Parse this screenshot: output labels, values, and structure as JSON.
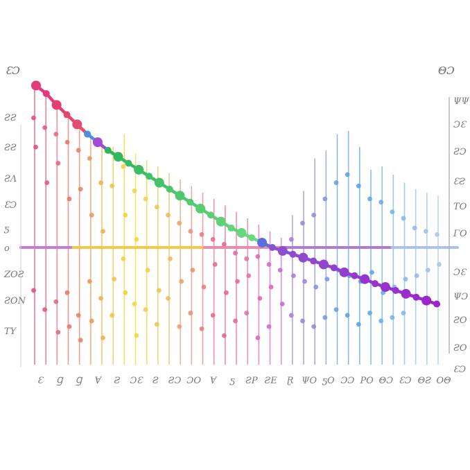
{
  "chart_data": {
    "type": "line",
    "title": "",
    "xlabel": "",
    "ylabel": "",
    "corner_labels": {
      "top_left": "ƐƆ",
      "top_right": "ΘƆ",
      "right_axis_bottom": "ƐƆ"
    },
    "left_ticks": [
      "ƧƧ",
      "ƧƧ",
      "ƧΛ",
      "ƐƆ",
      "ƽ",
      "ο",
      "ZOƧ",
      "ƧON",
      "TY"
    ],
    "right_ticks": [
      "ΨΨ",
      "ƆƐ",
      "ƧƆ",
      "ƐƧ",
      "ΤΟ",
      "ΓΟ",
      "ƆƐ",
      "ΨƆ",
      "ƧΟ",
      "ƧΟ"
    ],
    "x_tick_labels": [
      "Ɛ",
      "Ɡ",
      "Ɡ",
      "Ɐ",
      "Ƨ",
      "ƆƐ",
      "Ƨ",
      "ƧƆ",
      "ƆΟ",
      "Ɐ",
      "ƽ",
      "ƧΡ",
      "ƧΕ",
      "Ɽ",
      "ΨΟ",
      "ƽΟ",
      "ƆƆ",
      "ΡΟ",
      "ΘƆ",
      "ƐƆ",
      "ΘƧ",
      "ΟΘ"
    ],
    "series": [
      {
        "values": [
          100,
          95,
          88,
          82,
          76,
          70,
          65,
          60,
          56,
          52,
          48,
          44,
          40,
          36,
          32,
          28,
          24,
          20,
          16,
          12,
          9,
          6,
          3,
          0,
          -3,
          -6,
          -9,
          -12,
          -15,
          -18,
          -22,
          -25,
          -28,
          -32,
          -35,
          -38,
          -41,
          -44,
          -47,
          -50
        ],
        "colors": [
          "#e23a7a",
          "#e3397f",
          "#e33f70",
          "#e5466b",
          "#e24d72",
          "#4a8fe0",
          "#a04cd4",
          "#2fb55a",
          "#34b85e",
          "#39bb61",
          "#3dbd63",
          "#41c066",
          "#46c369",
          "#4ac56b",
          "#4ec86e",
          "#53ca70",
          "#57cd73",
          "#5bcf75",
          "#5fd278",
          "#64d47a",
          "#68d77d",
          "#6cd97f",
          "#5a6ee0",
          "#8a52d0",
          "#8c4fd0",
          "#8d4cd0",
          "#8e49cf",
          "#8f47cf",
          "#9044cf",
          "#9141ce",
          "#923ece",
          "#933bce",
          "#9438cd",
          "#9535cd",
          "#9632cd",
          "#9730cc",
          "#982dcc",
          "#992acc",
          "#9a27cb",
          "#9b24cb"
        ]
      }
    ],
    "stems": [
      {
        "color": "#e0507a",
        "top": 100,
        "dots": [
          80,
          62,
          -38
        ]
      },
      {
        "color": "#e25a7e",
        "top": 95,
        "dots": [
          74,
          40,
          -55
        ]
      },
      {
        "color": "#e36a7f",
        "top": 88,
        "dots": [
          70,
          52,
          -48,
          -75
        ]
      },
      {
        "color": "#e47a6e",
        "top": 82,
        "dots": [
          65,
          30,
          -40,
          -70
        ]
      },
      {
        "color": "#e38566",
        "top": 76,
        "dots": [
          60,
          36,
          -60,
          -82
        ]
      },
      {
        "color": "#eb9a5a",
        "top": 70,
        "dots": [
          55,
          20,
          -30,
          -65
        ]
      },
      {
        "color": "#f0b04e",
        "top": 66,
        "dots": [
          40,
          10,
          -45,
          -80
        ]
      },
      {
        "color": "#f2c24a",
        "top": 62,
        "dots": [
          38,
          -28,
          -60
        ]
      },
      {
        "color": "#f4cf3e",
        "top": 70,
        "dots": [
          50,
          20,
          -10,
          -40
        ]
      },
      {
        "color": "#f2d645",
        "top": 58,
        "dots": [
          35,
          5,
          -50,
          -78
        ]
      },
      {
        "color": "#eed24e",
        "top": 54,
        "dots": [
          30,
          -20,
          -55
        ]
      },
      {
        "color": "#ebc65a",
        "top": 50,
        "dots": [
          25,
          -38,
          -68
        ]
      },
      {
        "color": "#f0b860",
        "top": 46,
        "dots": [
          20,
          -10,
          -45
        ]
      },
      {
        "color": "#eda16a",
        "top": 42,
        "dots": [
          15,
          -30,
          -70
        ]
      },
      {
        "color": "#e8917a",
        "top": 38,
        "dots": [
          10,
          -20,
          -58
        ]
      },
      {
        "color": "#e48085",
        "top": 34,
        "dots": [
          8,
          -35,
          -72
        ]
      },
      {
        "color": "#e2708f",
        "top": 30,
        "dots": [
          5,
          -15,
          -60
        ]
      },
      {
        "color": "#e2688f",
        "top": 26,
        "dots": [
          2,
          -40,
          -78
        ]
      },
      {
        "color": "#e36aa0",
        "top": 22,
        "dots": [
          -5,
          -30,
          -65
        ]
      },
      {
        "color": "#e072aa",
        "top": 18,
        "dots": [
          -10,
          -25,
          -58
        ]
      },
      {
        "color": "#dc6ab4",
        "top": 14,
        "dots": [
          -8,
          -45,
          -80
        ]
      },
      {
        "color": "#d36cc1",
        "top": 10,
        "dots": [
          -15,
          -35,
          -70
        ]
      },
      {
        "color": "#c170cf",
        "top": 6,
        "dots": [
          -20,
          -50
        ]
      },
      {
        "color": "#a67fd9",
        "top": 20,
        "dots": [
          5,
          -25,
          -60
        ]
      },
      {
        "color": "#9c86dc",
        "top": 35,
        "dots": [
          15,
          -30,
          -65
        ]
      },
      {
        "color": "#8e8ee0",
        "top": 55,
        "dots": [
          20,
          -35,
          -70
        ]
      },
      {
        "color": "#7d97e2",
        "top": 60,
        "dots": [
          30,
          -28,
          -62
        ]
      },
      {
        "color": "#6c9ee4",
        "top": 70,
        "dots": [
          40,
          -20,
          -55
        ]
      },
      {
        "color": "#609fe5",
        "top": 72,
        "dots": [
          45,
          -25,
          -60
        ]
      },
      {
        "color": "#5aa2e6",
        "top": 62,
        "dots": [
          38,
          -30,
          -68
        ]
      },
      {
        "color": "#60a6e6",
        "top": 48,
        "dots": [
          30,
          -22,
          -58
        ]
      },
      {
        "color": "#6eace7",
        "top": 50,
        "dots": [
          28,
          -40,
          -65
        ]
      },
      {
        "color": "#7cb2e8",
        "top": 45,
        "dots": [
          22,
          -35,
          -62
        ]
      },
      {
        "color": "#88b8e9",
        "top": 40,
        "dots": [
          18,
          -28,
          -58
        ]
      },
      {
        "color": "#95bdea",
        "top": 36,
        "dots": [
          12,
          -25
        ]
      },
      {
        "color": "#a0c2ea",
        "top": 34,
        "dots": [
          10,
          -20
        ]
      },
      {
        "color": "#aac7eb",
        "top": 32,
        "dots": [
          8,
          -15
        ]
      }
    ],
    "ylim": [
      -100,
      110
    ],
    "grid": false,
    "legend": "none"
  }
}
